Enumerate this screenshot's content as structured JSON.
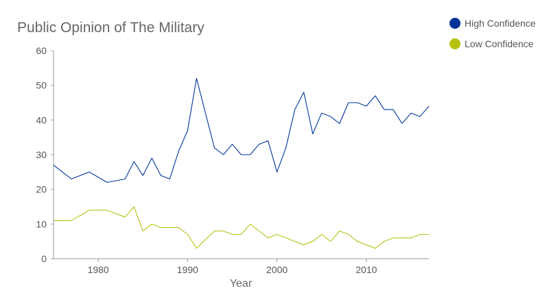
{
  "chart_data": {
    "type": "line",
    "title": "Public Opinion of The Military",
    "xlabel": "Year",
    "ylabel": "",
    "xlim": [
      1975,
      2017
    ],
    "ylim": [
      0,
      60
    ],
    "x_ticks": [
      1980,
      1990,
      2000,
      2010
    ],
    "y_ticks": [
      0,
      10,
      20,
      30,
      40,
      50,
      60
    ],
    "grid": false,
    "legend_position": "top-right",
    "series": [
      {
        "name": "High Confidence",
        "color": "#003399",
        "points": [
          [
            1975,
            27
          ],
          [
            1977,
            23
          ],
          [
            1979,
            25
          ],
          [
            1981,
            22
          ],
          [
            1983,
            23
          ],
          [
            1984,
            28
          ],
          [
            1985,
            24
          ],
          [
            1986,
            29
          ],
          [
            1987,
            24
          ],
          [
            1988,
            23
          ],
          [
            1989,
            31
          ],
          [
            1990,
            37
          ],
          [
            1991,
            52
          ],
          [
            1992,
            42
          ],
          [
            1993,
            32
          ],
          [
            1994,
            30
          ],
          [
            1995,
            33
          ],
          [
            1996,
            30
          ],
          [
            1997,
            30
          ],
          [
            1998,
            33
          ],
          [
            1999,
            34
          ],
          [
            2000,
            25
          ],
          [
            2001,
            32
          ],
          [
            2002,
            43
          ],
          [
            2003,
            48
          ],
          [
            2004,
            36
          ],
          [
            2005,
            42
          ],
          [
            2006,
            41
          ],
          [
            2007,
            39
          ],
          [
            2008,
            45
          ],
          [
            2009,
            45
          ],
          [
            2010,
            44
          ],
          [
            2011,
            47
          ],
          [
            2012,
            43
          ],
          [
            2013,
            43
          ],
          [
            2014,
            39
          ],
          [
            2015,
            42
          ],
          [
            2016,
            41
          ],
          [
            2017,
            44
          ]
        ]
      },
      {
        "name": "Low Confidence",
        "color": "#b8c011",
        "points": [
          [
            1975,
            11
          ],
          [
            1977,
            11
          ],
          [
            1979,
            14
          ],
          [
            1981,
            14
          ],
          [
            1983,
            12
          ],
          [
            1984,
            15
          ],
          [
            1985,
            8
          ],
          [
            1986,
            10
          ],
          [
            1987,
            9
          ],
          [
            1988,
            9
          ],
          [
            1989,
            9
          ],
          [
            1990,
            7
          ],
          [
            1991,
            3
          ],
          [
            1992,
            5.5
          ],
          [
            1993,
            8
          ],
          [
            1994,
            8
          ],
          [
            1995,
            7
          ],
          [
            1996,
            7
          ],
          [
            1997,
            10
          ],
          [
            1998,
            8
          ],
          [
            1999,
            6
          ],
          [
            2000,
            7
          ],
          [
            2001,
            6
          ],
          [
            2002,
            5
          ],
          [
            2003,
            4
          ],
          [
            2004,
            5
          ],
          [
            2005,
            7
          ],
          [
            2006,
            5
          ],
          [
            2007,
            8
          ],
          [
            2008,
            7
          ],
          [
            2009,
            5
          ],
          [
            2010,
            4
          ],
          [
            2011,
            3
          ],
          [
            2012,
            5
          ],
          [
            2013,
            6
          ],
          [
            2014,
            6
          ],
          [
            2015,
            6
          ],
          [
            2016,
            7
          ],
          [
            2017,
            7
          ]
        ]
      }
    ]
  }
}
